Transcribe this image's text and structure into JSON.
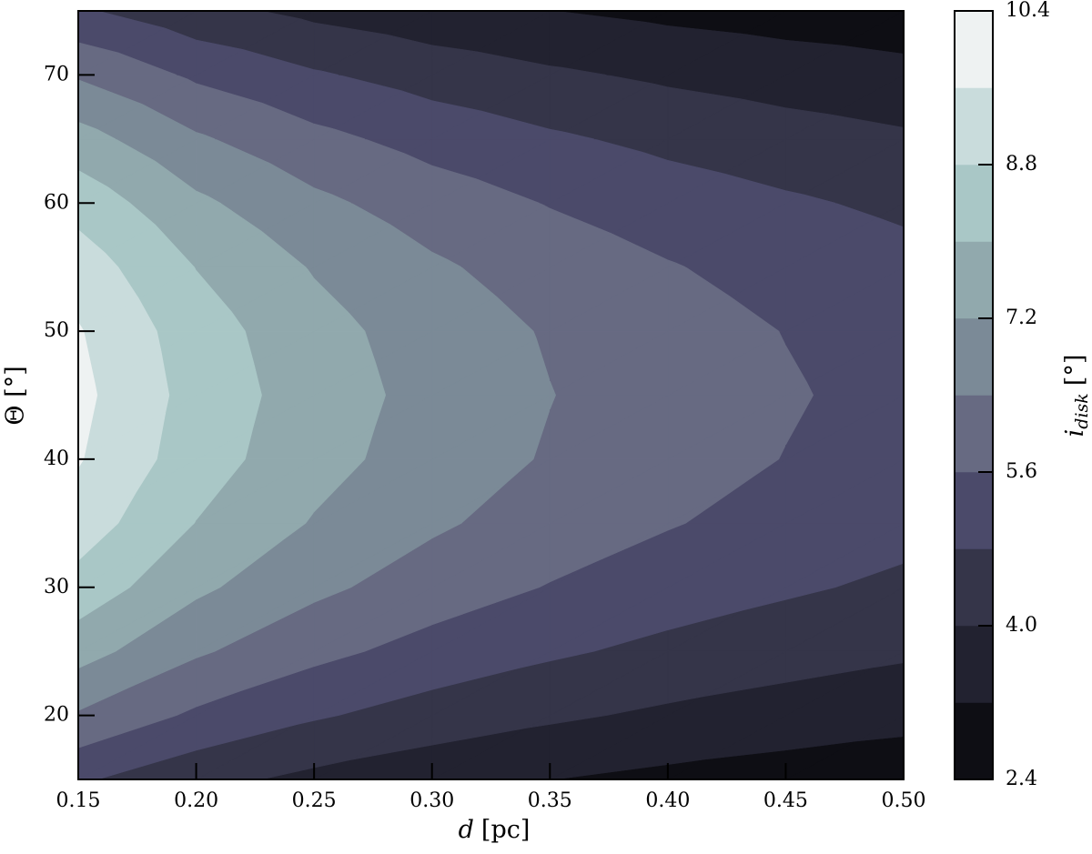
{
  "chart_data": {
    "type": "contourf",
    "x": [
      0.15,
      0.2,
      0.25,
      0.3,
      0.35,
      0.4,
      0.45,
      0.5
    ],
    "y": [
      15,
      20,
      25,
      30,
      35,
      40,
      45,
      50,
      55,
      60,
      65,
      70,
      75
    ],
    "z": [
      [
        4.91,
        4.25,
        3.8,
        3.47,
        3.21,
        3.0,
        2.83,
        2.69
      ],
      [
        6.31,
        5.46,
        4.89,
        4.46,
        4.13,
        3.86,
        3.64,
        3.45
      ],
      [
        7.52,
        6.51,
        5.82,
        5.31,
        4.92,
        4.6,
        4.34,
        4.12
      ],
      [
        8.5,
        7.36,
        6.58,
        6.01,
        5.56,
        5.2,
        4.91,
        4.65
      ],
      [
        9.22,
        7.98,
        7.14,
        6.52,
        6.04,
        5.65,
        5.32,
        5.05
      ],
      [
        9.66,
        8.37,
        7.48,
        6.83,
        6.33,
        5.92,
        5.58,
        5.29
      ],
      [
        9.81,
        8.5,
        7.6,
        6.94,
        6.42,
        6.01,
        5.67,
        5.37
      ],
      [
        9.66,
        8.37,
        7.48,
        6.83,
        6.33,
        5.92,
        5.58,
        5.29
      ],
      [
        9.22,
        7.98,
        7.14,
        6.52,
        6.04,
        5.65,
        5.32,
        5.05
      ],
      [
        8.5,
        7.36,
        6.58,
        6.01,
        5.56,
        5.2,
        4.91,
        4.65
      ],
      [
        7.52,
        6.51,
        5.82,
        5.31,
        4.92,
        4.6,
        4.34,
        4.12
      ],
      [
        6.31,
        5.46,
        4.89,
        4.46,
        4.13,
        3.86,
        3.64,
        3.45
      ],
      [
        4.91,
        4.25,
        3.8,
        3.47,
        3.21,
        3.0,
        2.83,
        2.69
      ]
    ],
    "levels": [
      2.4,
      3.2,
      4,
      4.8,
      5.6,
      6.4,
      7.2,
      8,
      8.8,
      9.6,
      10.4
    ],
    "colors": [
      "#0e0e14",
      "#222230",
      "#353549",
      "#4b4a6a",
      "#676a82",
      "#7b8a97",
      "#91a9ad",
      "#a9c7c6",
      "#c9dcdc",
      "#eef2f2"
    ],
    "xlim": [
      0.15,
      0.5
    ],
    "ylim": [
      15,
      75
    ],
    "xticks": [
      0.15,
      {
        "value": 0.2,
        "label": "0.20"
      },
      0.25,
      {
        "value": 0.3,
        "label": "0.30"
      },
      0.35,
      {
        "value": 0.4,
        "label": "0.40"
      },
      0.45,
      {
        "value": 0.5,
        "label": "0.50"
      }
    ],
    "yticks": [
      20,
      30,
      40,
      50,
      60,
      70
    ],
    "xlabel": {
      "symbol": "d",
      "unit": "[pc]"
    },
    "ylabel": "Θ [°]",
    "colorbar": {
      "label": {
        "symbol": "i",
        "subscript": "disk",
        "unit": "[°]"
      },
      "ticks": [
        2.4,
        {
          "value": 4,
          "label": "4.0"
        },
        5.6,
        7.2,
        8.8,
        10.4
      ]
    }
  }
}
